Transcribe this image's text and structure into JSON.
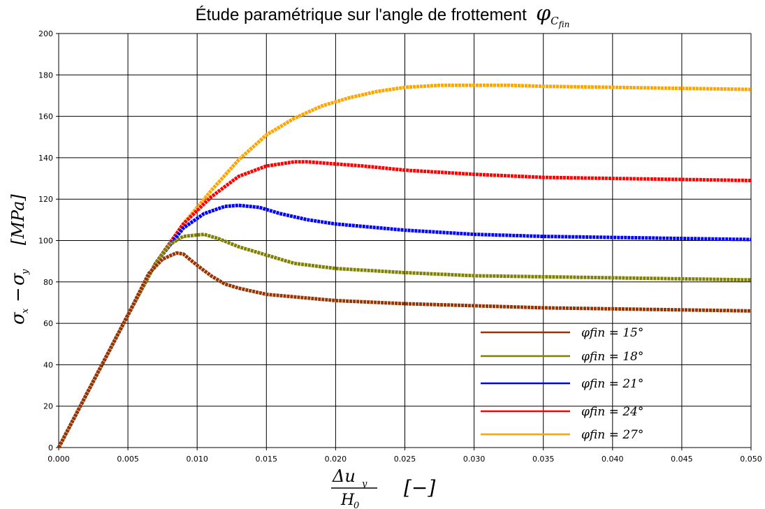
{
  "chart_data": {
    "type": "line",
    "title": "Étude paramétrique sur l'angle de frottement",
    "title_symbol": "φ",
    "title_sub": "C",
    "title_subsub": "fin",
    "ylabel": "σx − σy  [MPa]",
    "xlabel": "Δuy / H0  [−]",
    "xlim": [
      0,
      0.05
    ],
    "ylim": [
      0,
      200
    ],
    "xticks": [
      "0.000",
      "0.005",
      "0.010",
      "0.015",
      "0.020",
      "0.025",
      "0.030",
      "0.035",
      "0.040",
      "0.045",
      "0.050"
    ],
    "yticks": [
      "0",
      "20",
      "40",
      "60",
      "80",
      "100",
      "120",
      "140",
      "160",
      "180",
      "200"
    ],
    "grid": true,
    "legend_position": "lower-right",
    "series": [
      {
        "name": "φfin = 15°",
        "color": "#993300",
        "points": [
          [
            0,
            0
          ],
          [
            0.005,
            64
          ],
          [
            0.0065,
            84
          ],
          [
            0.0075,
            91
          ],
          [
            0.0085,
            94
          ],
          [
            0.009,
            93.5
          ],
          [
            0.01,
            88
          ],
          [
            0.011,
            83
          ],
          [
            0.012,
            79
          ],
          [
            0.013,
            77
          ],
          [
            0.015,
            74
          ],
          [
            0.02,
            71
          ],
          [
            0.025,
            69.5
          ],
          [
            0.03,
            68.5
          ],
          [
            0.035,
            67.5
          ],
          [
            0.04,
            67
          ],
          [
            0.045,
            66.5
          ],
          [
            0.05,
            66
          ]
        ]
      },
      {
        "name": "φfin = 18°",
        "color": "#808000",
        "points": [
          [
            0,
            0
          ],
          [
            0.005,
            64
          ],
          [
            0.007,
            89
          ],
          [
            0.008,
            98
          ],
          [
            0.009,
            102
          ],
          [
            0.0105,
            103
          ],
          [
            0.0115,
            101
          ],
          [
            0.013,
            97
          ],
          [
            0.015,
            93
          ],
          [
            0.017,
            89
          ],
          [
            0.02,
            86.5
          ],
          [
            0.025,
            84.5
          ],
          [
            0.03,
            83
          ],
          [
            0.035,
            82.5
          ],
          [
            0.04,
            82
          ],
          [
            0.045,
            81.5
          ],
          [
            0.05,
            81
          ]
        ]
      },
      {
        "name": "φfin = 21°",
        "color": "#0000ff",
        "points": [
          [
            0,
            0
          ],
          [
            0.005,
            64
          ],
          [
            0.007,
            89
          ],
          [
            0.009,
            106
          ],
          [
            0.0105,
            113
          ],
          [
            0.012,
            116.5
          ],
          [
            0.013,
            117
          ],
          [
            0.0145,
            116
          ],
          [
            0.016,
            113
          ],
          [
            0.018,
            110
          ],
          [
            0.02,
            108
          ],
          [
            0.025,
            105
          ],
          [
            0.03,
            103
          ],
          [
            0.035,
            102
          ],
          [
            0.04,
            101.5
          ],
          [
            0.045,
            101
          ],
          [
            0.05,
            100.5
          ]
        ]
      },
      {
        "name": "φfin = 24°",
        "color": "#ff0000",
        "points": [
          [
            0,
            0
          ],
          [
            0.005,
            64
          ],
          [
            0.007,
            89
          ],
          [
            0.009,
            108
          ],
          [
            0.011,
            121
          ],
          [
            0.013,
            131
          ],
          [
            0.015,
            136
          ],
          [
            0.017,
            138
          ],
          [
            0.018,
            138
          ],
          [
            0.02,
            137
          ],
          [
            0.022,
            136
          ],
          [
            0.025,
            134
          ],
          [
            0.03,
            132
          ],
          [
            0.035,
            130.5
          ],
          [
            0.04,
            130
          ],
          [
            0.045,
            129.5
          ],
          [
            0.05,
            129
          ]
        ]
      },
      {
        "name": "φfin = 27°",
        "color": "#ffa500",
        "points": [
          [
            0,
            0
          ],
          [
            0.005,
            64
          ],
          [
            0.007,
            89
          ],
          [
            0.009,
            108
          ],
          [
            0.011,
            124
          ],
          [
            0.013,
            139
          ],
          [
            0.015,
            151
          ],
          [
            0.017,
            159
          ],
          [
            0.019,
            165
          ],
          [
            0.021,
            169
          ],
          [
            0.023,
            172
          ],
          [
            0.025,
            174
          ],
          [
            0.0275,
            175
          ],
          [
            0.03,
            175
          ],
          [
            0.0325,
            175
          ],
          [
            0.035,
            174.5
          ],
          [
            0.04,
            174
          ],
          [
            0.045,
            173.5
          ],
          [
            0.05,
            173
          ]
        ]
      }
    ]
  }
}
